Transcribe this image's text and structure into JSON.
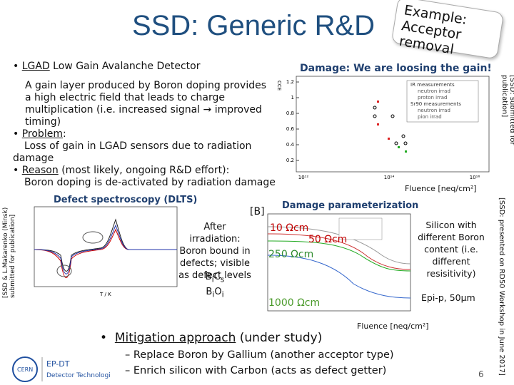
{
  "header": {
    "title": "SSD: Generic R&D",
    "sticker": [
      "Example:",
      "Acceptor removal"
    ]
  },
  "bullets": [
    {
      "lead": "LGAD",
      "text": " Low Gain Avalanche Detector"
    },
    {
      "lead": "Problem",
      "text": ":",
      "detail": "Loss of gain in LGAD sensors due to radiation damage"
    },
    {
      "lead": "Reason",
      "text": " (most likely, ongoing R&D effort):",
      "detail": "Boron doping is de-activated by radiation damage"
    }
  ],
  "description": "A gain layer produced by Boron doping provides a high electric field that leads to charge multiplication (i.e. increased signal → improved timing)",
  "cce_plot": {
    "title": "Damage: We are loosing the gain!",
    "y_label": "CCE",
    "yticks": [
      "1.2",
      "1",
      "0.8",
      "0.6",
      "0.4",
      "0.2"
    ],
    "xticks": [
      "10¹²",
      "10¹⁴",
      "10¹⁶"
    ],
    "legend": [
      "IR measurements",
      "neutron irrad",
      "proton irrad",
      "Sr90 measurements",
      "neutron irrad",
      "pion irrad"
    ],
    "x_label": "Fluence [neq/cm²]",
    "source": "[SSD: submitted for publication]"
  },
  "dlts": {
    "title": "Defect spectroscopy (DLTS)",
    "marker": "[B]",
    "x_label": "T / K",
    "source": "[SSD & L.Makarenko (Minsk) submitted for publication]",
    "explanation": "After irradiation: Boron bound in defects; visible as defect levels",
    "defects": [
      [
        "B",
        "i",
        "C",
        "s"
      ],
      [
        "B",
        "i",
        "O",
        "i"
      ]
    ]
  },
  "parameterization": {
    "title": "Damage parameterization",
    "resistivities": [
      "10 Ωcm",
      "50 Ωcm",
      "250 Ωcm",
      "1000 Ωcm"
    ],
    "note": "Silicon with different Boron content (i.e. different resisitivity)",
    "epi": "Epi-p, 50µm",
    "x_label": "Fluence [neq/cm²]",
    "source": "[SSD: presented on RD50 Workshop in June 2017]"
  },
  "mitigation": {
    "lead": "Mitigation approach",
    "text": " (under study)",
    "items": [
      "– Replace Boron by Gallium (another acceptor type)",
      "– Enrich silicon with Carbon (acts as defect getter)"
    ]
  },
  "footer": {
    "page": "6",
    "logo": [
      "EP-DT",
      "Detector Technologies"
    ],
    "cern": "CERN"
  }
}
